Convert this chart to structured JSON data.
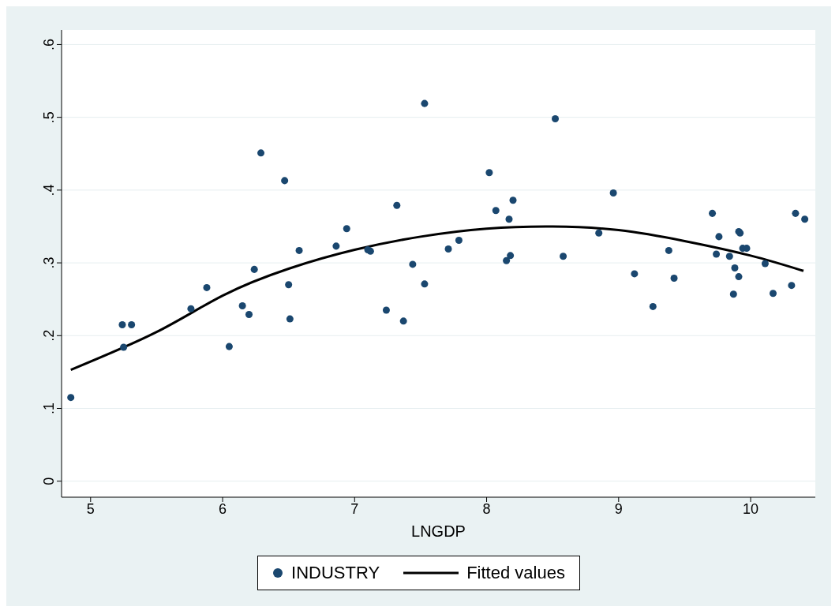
{
  "chart_data": {
    "type": "scatter",
    "xlabel": "LNGDP",
    "xlim": [
      4.78,
      10.49
    ],
    "xticks": [
      5,
      6,
      7,
      8,
      9,
      10
    ],
    "ylim": [
      -0.022,
      0.62
    ],
    "yticks": [
      {
        "value": 0,
        "label": "0"
      },
      {
        "value": 0.1,
        "label": ".1"
      },
      {
        "value": 0.2,
        "label": ".2"
      },
      {
        "value": 0.3,
        "label": ".3"
      },
      {
        "value": 0.4,
        "label": ".4"
      },
      {
        "value": 0.5,
        "label": ".5"
      },
      {
        "value": 0.6,
        "label": ".6"
      }
    ],
    "grid": "y",
    "legend": "bottom",
    "series": [
      {
        "name": "INDUSTRY",
        "color": "#1a476f",
        "marker": "circle",
        "x": [
          4.85,
          5.24,
          5.25,
          5.31,
          5.76,
          5.88,
          6.05,
          6.15,
          6.2,
          6.24,
          6.29,
          6.47,
          6.5,
          6.51,
          6.58,
          6.86,
          6.94,
          7.1,
          7.12,
          7.24,
          7.32,
          7.37,
          7.44,
          7.53,
          7.53,
          7.71,
          7.79,
          8.02,
          8.07,
          8.15,
          8.18,
          8.17,
          8.2,
          8.52,
          8.58,
          8.85,
          8.96,
          9.12,
          9.26,
          9.38,
          9.42,
          9.71,
          9.74,
          9.76,
          9.84,
          9.87,
          9.88,
          9.91,
          9.91,
          9.92,
          9.94,
          9.97,
          10.11,
          10.17,
          10.31,
          10.34,
          10.41
        ],
        "values": [
          0.115,
          0.215,
          0.184,
          0.215,
          0.237,
          0.266,
          0.185,
          0.241,
          0.229,
          0.291,
          0.451,
          0.413,
          0.27,
          0.223,
          0.317,
          0.323,
          0.347,
          0.318,
          0.316,
          0.235,
          0.379,
          0.22,
          0.298,
          0.519,
          0.271,
          0.319,
          0.331,
          0.424,
          0.372,
          0.303,
          0.31,
          0.36,
          0.386,
          0.498,
          0.309,
          0.341,
          0.396,
          0.285,
          0.24,
          0.317,
          0.279,
          0.368,
          0.312,
          0.336,
          0.309,
          0.257,
          0.293,
          0.281,
          0.343,
          0.341,
          0.32,
          0.32,
          0.299,
          0.258,
          0.269,
          0.368,
          0.36
        ]
      },
      {
        "name": "Fitted values",
        "type": "line",
        "color": "#000000",
        "marker": "none",
        "line_style": "solid",
        "x": [
          4.85,
          5.5,
          6,
          6.5,
          7,
          7.5,
          8,
          8.5,
          9,
          9.5,
          10,
          10.4
        ],
        "values": [
          0.153,
          0.205,
          0.255,
          0.292,
          0.318,
          0.336,
          0.347,
          0.35,
          0.345,
          0.33,
          0.31,
          0.289
        ]
      }
    ]
  }
}
